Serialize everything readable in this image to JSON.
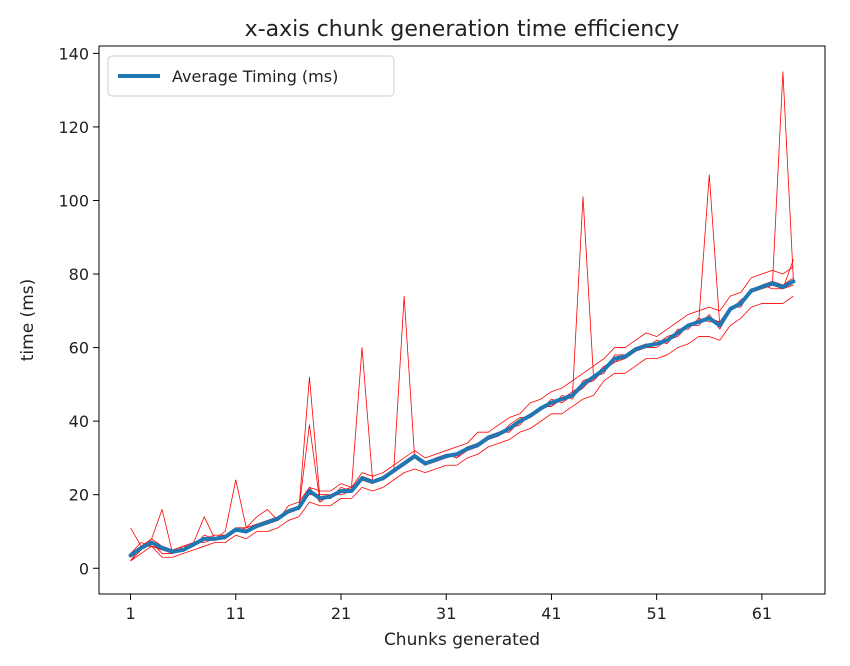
{
  "chart_data": {
    "type": "line",
    "title": "x-axis chunk generation time efficiency",
    "xlabel": "Chunks generated",
    "ylabel": "time (ms)",
    "xlim": [
      -2,
      67
    ],
    "ylim": [
      -7,
      142
    ],
    "x_ticks": [
      1,
      11,
      21,
      31,
      41,
      51,
      61
    ],
    "y_ticks": [
      0,
      20,
      40,
      60,
      80,
      100,
      120,
      140
    ],
    "grid": false,
    "legend": {
      "position": "top-left",
      "entries": [
        "Average Timing (ms)"
      ]
    },
    "colors": {
      "average": "#1f77b4",
      "runs": "#ff0000"
    },
    "x": [
      1,
      2,
      3,
      4,
      5,
      6,
      7,
      8,
      9,
      10,
      11,
      12,
      13,
      14,
      15,
      16,
      17,
      18,
      19,
      20,
      21,
      22,
      23,
      24,
      25,
      26,
      27,
      28,
      29,
      30,
      31,
      32,
      33,
      34,
      35,
      36,
      37,
      38,
      39,
      40,
      41,
      42,
      43,
      44,
      45,
      46,
      47,
      48,
      49,
      50,
      51,
      52,
      53,
      54,
      55,
      56,
      57,
      58,
      59,
      60,
      61,
      62,
      63,
      64
    ],
    "series": [
      {
        "name": "Average Timing (ms)",
        "values": [
          3.5,
          5.5,
          7,
          5.5,
          4.5,
          5,
          6.5,
          8,
          8,
          8.5,
          10.5,
          10,
          11.5,
          12.5,
          13.5,
          15.5,
          16.5,
          21,
          19,
          19.5,
          21,
          21,
          24.5,
          23.5,
          24.5,
          26.5,
          28.5,
          30.5,
          28.5,
          29.5,
          30.5,
          31,
          32.5,
          33.5,
          35.5,
          36.5,
          38,
          40,
          41.5,
          43.5,
          45,
          46,
          47,
          50,
          52,
          54,
          57,
          57.5,
          59.5,
          60.5,
          61,
          62,
          64,
          66,
          67,
          68,
          66,
          70.5,
          72,
          75.5,
          76.5,
          77.5,
          76.5,
          78
        ]
      },
      {
        "values": [
          2,
          6,
          7,
          4,
          4,
          5,
          7,
          8,
          8,
          9,
          11,
          10,
          11,
          13,
          13,
          16,
          16,
          21,
          19,
          19,
          21,
          22,
          24,
          23,
          25,
          27,
          28,
          30,
          28,
          30,
          30,
          31,
          32,
          34,
          35,
          37,
          38,
          40,
          41,
          43,
          45,
          46,
          47,
          50,
          51,
          54,
          57,
          57,
          59,
          61,
          61,
          62,
          64,
          66,
          67,
          68,
          66,
          71,
          72,
          76,
          76,
          77,
          76,
          78
        ]
      },
      {
        "values": [
          4,
          7,
          6,
          5,
          5,
          6,
          6,
          9,
          8,
          8,
          10,
          11,
          12,
          12,
          14,
          15,
          17,
          22,
          18,
          20,
          20,
          21,
          25,
          24,
          24,
          26,
          29,
          31,
          29,
          29,
          31,
          30,
          33,
          33,
          36,
          36,
          39,
          41,
          41,
          44,
          44,
          47,
          46,
          51,
          52,
          53,
          58,
          58,
          60,
          60,
          62,
          61,
          65,
          65,
          68,
          67,
          67,
          70,
          73,
          75,
          77,
          78,
          77,
          79
        ]
      },
      {
        "values": [
          3,
          5,
          8,
          6,
          4,
          5,
          7,
          8,
          9,
          9,
          11,
          10,
          12,
          13,
          13,
          16,
          16,
          52,
          19,
          19,
          22,
          21,
          24,
          23,
          25,
          26,
          28,
          30,
          28,
          30,
          30,
          31,
          32,
          34,
          35,
          37,
          37,
          40,
          42,
          43,
          45,
          46,
          48,
          50,
          52,
          55,
          56,
          57,
          59,
          61,
          61,
          62,
          63,
          66,
          67,
          68,
          66,
          71,
          71,
          76,
          76,
          77,
          76,
          77
        ]
      },
      {
        "values": [
          4,
          6,
          7,
          5,
          5,
          5,
          6,
          8,
          8,
          9,
          10,
          10,
          11,
          13,
          14,
          15,
          17,
          20,
          20,
          20,
          21,
          22,
          60,
          24,
          24,
          27,
          28,
          30,
          29,
          29,
          31,
          31,
          32,
          33,
          35,
          36,
          38,
          39,
          42,
          43,
          46,
          45,
          47,
          49,
          52,
          54,
          57,
          58,
          60,
          60,
          61,
          63,
          64,
          66,
          66,
          69,
          65,
          70,
          72,
          75,
          77,
          78,
          77,
          78
        ]
      },
      {
        "values": [
          3,
          6,
          6,
          5,
          4,
          5,
          7,
          7,
          8,
          8,
          11,
          10,
          11,
          12,
          13,
          15,
          16,
          21,
          19,
          19,
          21,
          21,
          25,
          23,
          25,
          26,
          74,
          30,
          28,
          29,
          30,
          31,
          33,
          34,
          36,
          37,
          38,
          40,
          41,
          44,
          44,
          46,
          47,
          101,
          52,
          54,
          57,
          57,
          59,
          60,
          60,
          62,
          64,
          66,
          67,
          107,
          66,
          70,
          72,
          75,
          76,
          77,
          135,
          78
        ]
      },
      {
        "values": [
          2,
          5,
          7,
          6,
          5,
          5,
          6,
          8,
          8,
          9,
          11,
          11,
          12,
          12,
          14,
          16,
          16,
          39,
          18,
          20,
          21,
          21,
          24,
          24,
          24,
          27,
          28,
          31,
          28,
          30,
          31,
          30,
          32,
          34,
          35,
          36,
          38,
          40,
          41,
          43,
          45,
          46,
          47,
          50,
          51,
          54,
          56,
          58,
          60,
          61,
          61,
          62,
          64,
          66,
          67,
          68,
          67,
          71,
          72,
          75,
          77,
          76,
          76,
          84
        ]
      },
      {
        "values": [
          11,
          6,
          8,
          16,
          4,
          6,
          7,
          14,
          8,
          10,
          24,
          11,
          14,
          16,
          13,
          17,
          18,
          22,
          21,
          21,
          23,
          22,
          26,
          25,
          26,
          28,
          30,
          32,
          30,
          31,
          32,
          33,
          34,
          37,
          37,
          39,
          41,
          42,
          45,
          46,
          48,
          49,
          51,
          53,
          55,
          57,
          60,
          60,
          62,
          64,
          63,
          65,
          67,
          69,
          70,
          71,
          70,
          74,
          75,
          79,
          80,
          81,
          80,
          82
        ]
      },
      {
        "values": [
          2,
          4,
          6,
          3,
          3,
          4,
          5,
          6,
          7,
          7,
          9,
          8,
          10,
          10,
          11,
          13,
          14,
          18,
          17,
          17,
          19,
          19,
          22,
          21,
          22,
          24,
          26,
          27,
          26,
          27,
          28,
          28,
          30,
          31,
          33,
          34,
          35,
          37,
          38,
          40,
          42,
          42,
          44,
          46,
          47,
          51,
          53,
          53,
          55,
          57,
          57,
          58,
          60,
          61,
          63,
          63,
          62,
          66,
          68,
          71,
          72,
          72,
          72,
          74
        ]
      }
    ]
  }
}
